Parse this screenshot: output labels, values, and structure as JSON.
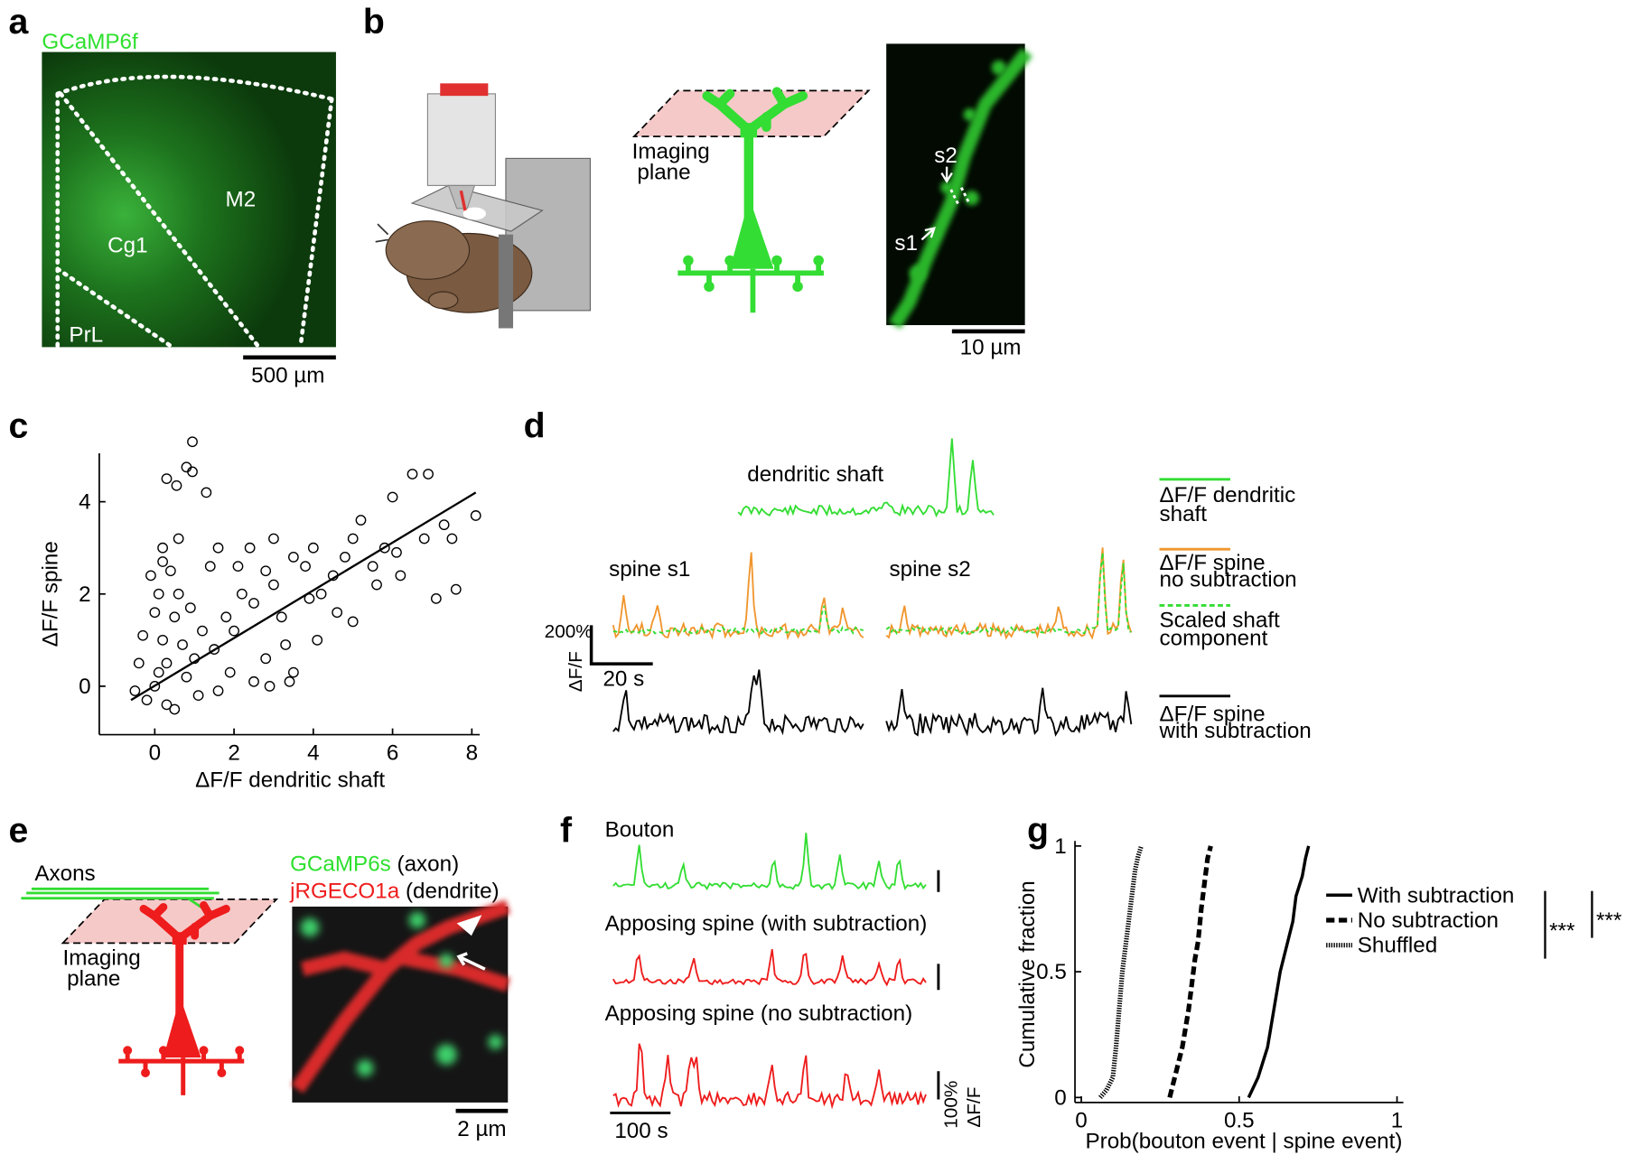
{
  "panels": {
    "a": {
      "label": "a",
      "stain": "GCaMP6f",
      "regions": [
        "M2",
        "Cg1",
        "PrL"
      ],
      "scale_bar": "500 µm"
    },
    "b": {
      "label": "b",
      "plane": [
        "Imaging",
        "plane"
      ],
      "spines": [
        "s2",
        "s1"
      ],
      "scale_bar": "10 µm"
    },
    "c": {
      "label": "c"
    },
    "d": {
      "label": "d",
      "shaft_title": "dendritic shaft",
      "spine_titles": [
        "spine s1",
        "spine s2"
      ],
      "scale_y": [
        "200%",
        "ΔF/F"
      ],
      "scale_x": "20 s",
      "legend": [
        [
          "ΔF/F dendritic",
          "shaft"
        ],
        [
          "ΔF/F spine",
          "no subtraction"
        ],
        [
          "Scaled shaft",
          "component"
        ],
        [
          "ΔF/F spine",
          "with subtraction"
        ]
      ]
    },
    "e": {
      "label": "e",
      "axons": "Axons",
      "plane": [
        "Imaging",
        "plane"
      ],
      "indicator_green": "GCaMP6s",
      "indicator_green_target": "(axon)",
      "indicator_red": "jRGECO1a",
      "indicator_red_target": "(dendrite)",
      "scale_bar": "2 µm"
    },
    "f": {
      "label": "f",
      "traces": [
        "Bouton",
        "Apposing spine (with subtraction)",
        "Apposing spine (no subtraction)"
      ],
      "scale_y": [
        "100%",
        "ΔF/F"
      ],
      "scale_x": "100 s"
    },
    "g": {
      "label": "g",
      "significance": [
        "***",
        "***"
      ]
    }
  },
  "chart_data": [
    {
      "type": "scatter",
      "xlabel": "ΔF/F dendritic shaft",
      "ylabel": "ΔF/F spine",
      "color": "#000000",
      "x": [
        0,
        0.1,
        -0.2,
        0.2,
        0.3,
        0.5,
        0.1,
        0.4,
        0.2,
        0.6,
        0.3,
        0.8,
        1,
        1.2,
        1.5,
        1.8,
        2,
        2.2,
        2.5,
        2.8,
        3,
        3.2,
        3.5,
        3.8,
        4,
        4.2,
        4.5,
        4.8,
        5,
        5.2,
        5.5,
        5.8,
        6,
        6.2,
        6.5,
        6.9,
        7.1,
        7.3,
        7.6,
        8.1,
        7.5,
        6.8,
        4.1,
        3.5,
        2.5,
        0.95,
        0.3,
        0.55,
        0.8,
        1.3,
        0.95,
        -0.5,
        -0.4,
        -0.3,
        0,
        -0.1,
        0.6,
        0.7,
        1.4,
        1.6,
        2.4,
        3,
        3.3,
        5,
        2.8,
        1.1,
        0.5,
        1.9,
        0.9,
        0.2,
        4.6,
        5.6,
        6.1,
        3.9,
        2.1,
        3.4,
        2.9,
        1.6
      ],
      "y": [
        0,
        0.3,
        -0.3,
        1,
        0.5,
        1.5,
        2,
        2.5,
        3,
        3.2,
        -0.4,
        0.2,
        0.6,
        1.2,
        0.8,
        1.5,
        1.2,
        2,
        1.8,
        2.5,
        2.2,
        1.5,
        2.8,
        2.6,
        3,
        2,
        2.4,
        2.8,
        3.2,
        3.6,
        2.6,
        3,
        4.1,
        2.4,
        4.6,
        4.6,
        1.9,
        3.5,
        2.1,
        3.7,
        3.2,
        3.2,
        1,
        0.3,
        0.1,
        5.3,
        4.5,
        4.35,
        4.75,
        4.2,
        4.65,
        -0.1,
        0.5,
        1.1,
        1.6,
        2.4,
        2,
        0.9,
        2.6,
        3,
        3,
        3.2,
        0.9,
        1.4,
        0.6,
        -0.2,
        -0.5,
        0.3,
        1.7,
        2.7,
        1.6,
        2.2,
        2.9,
        1.9,
        2.6,
        0.1,
        0,
        -0.1
      ],
      "fit": {
        "x": [
          -0.6,
          8.1
        ],
        "y": [
          -0.3,
          4.2
        ]
      },
      "xlim": [
        -1.4,
        8.2
      ],
      "ylim": [
        -1.05,
        5.05
      ],
      "xticks": [
        0,
        2,
        4,
        6,
        8
      ],
      "yticks": [
        0,
        2,
        4
      ]
    },
    {
      "type": "line",
      "xlabel": "Prob(bouton event | spine event)",
      "ylabel": "Cumulative fraction",
      "legend": "right",
      "xlim": [
        -0.02,
        1.02
      ],
      "ylim": [
        -0.02,
        1.02
      ],
      "xticks": [
        0,
        0.5,
        1
      ],
      "yticks": [
        0,
        0.5,
        1
      ],
      "series": [
        {
          "name": "With subtraction",
          "color": "#000000",
          "style": "solid",
          "x": [
            0.53,
            0.56,
            0.59,
            0.61,
            0.63,
            0.65,
            0.67,
            0.68,
            0.7,
            0.71,
            0.72
          ],
          "y": [
            0,
            0.08,
            0.2,
            0.35,
            0.5,
            0.6,
            0.7,
            0.8,
            0.88,
            0.95,
            1
          ]
        },
        {
          "name": "No subtraction",
          "color": "#000000",
          "style": "dashed",
          "x": [
            0.28,
            0.3,
            0.32,
            0.34,
            0.35,
            0.36,
            0.37,
            0.38,
            0.39,
            0.4,
            0.41
          ],
          "y": [
            0,
            0.1,
            0.2,
            0.35,
            0.45,
            0.55,
            0.62,
            0.75,
            0.85,
            0.95,
            1
          ]
        },
        {
          "name": "Shuffled",
          "color": "#000000",
          "style": "dotted",
          "x": [
            0.06,
            0.08,
            0.1,
            0.11,
            0.12,
            0.13,
            0.14,
            0.15,
            0.16,
            0.17,
            0.18,
            0.19
          ],
          "y": [
            0,
            0.03,
            0.08,
            0.2,
            0.35,
            0.5,
            0.6,
            0.7,
            0.8,
            0.9,
            0.96,
            1
          ]
        }
      ]
    }
  ]
}
